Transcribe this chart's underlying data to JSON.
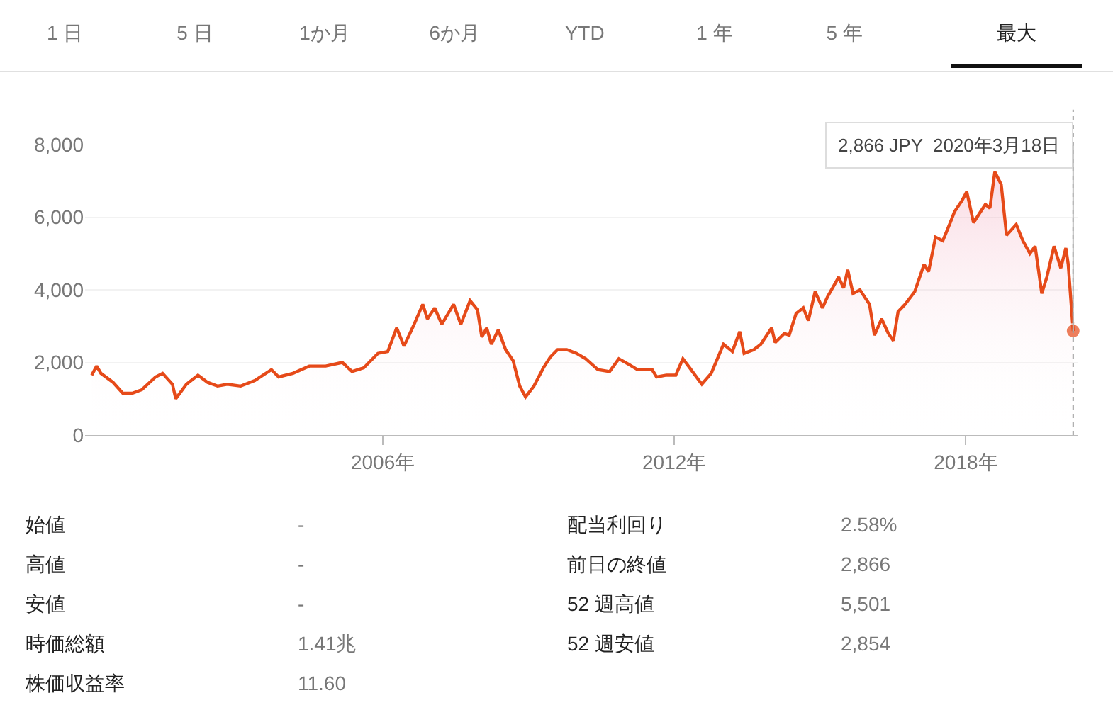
{
  "chart_data": {
    "type": "area",
    "x": [
      "2000-01-04",
      "2000-02-10",
      "2000-03-13",
      "2000-06-13",
      "2000-08-25",
      "2000-11-03",
      "2001-01-15",
      "2001-04-28",
      "2001-06-20",
      "2001-09-02",
      "2001-09-27",
      "2001-12-16",
      "2002-03-13",
      "2002-05-25",
      "2002-08-07",
      "2002-10-19",
      "2003-01-28",
      "2003-05-14",
      "2003-09-16",
      "2003-11-10",
      "2004-02-25",
      "2004-06-27",
      "2004-10-28",
      "2005-03-02",
      "2005-05-14",
      "2005-08-10",
      "2005-11-25",
      "2006-02-07",
      "2006-04-15",
      "2006-06-09",
      "2006-08-18",
      "2006-10-28",
      "2006-12-02",
      "2007-01-26",
      "2007-03-20",
      "2007-06-17",
      "2007-08-10",
      "2007-10-19",
      "2007-12-13",
      "2008-01-15",
      "2008-02-21",
      "2008-03-27",
      "2008-05-18",
      "2008-07-12",
      "2008-09-06",
      "2008-10-26",
      "2008-12-09",
      "2009-02-10",
      "2009-04-22",
      "2009-06-13",
      "2009-08-07",
      "2009-10-15",
      "2009-12-27",
      "2010-03-06",
      "2010-06-06",
      "2010-09-02",
      "2010-11-10",
      "2011-01-23",
      "2011-04-01",
      "2011-07-19",
      "2011-08-21",
      "2011-11-03",
      "2012-01-12",
      "2012-03-06",
      "2012-04-26",
      "2012-07-26",
      "2012-10-05",
      "2013-01-05",
      "2013-03-13",
      "2013-05-07",
      "2013-06-09",
      "2013-08-21",
      "2013-10-12",
      "2014-01-02",
      "2014-01-28",
      "2014-04-08",
      "2014-05-14",
      "2014-07-05",
      "2014-08-28",
      "2014-10-05",
      "2014-11-25",
      "2015-01-19",
      "2015-02-25",
      "2015-05-21",
      "2015-06-27",
      "2015-07-28",
      "2015-09-06",
      "2015-10-28",
      "2016-01-08",
      "2016-02-14",
      "2016-04-08",
      "2016-05-28",
      "2016-07-05",
      "2016-08-10",
      "2016-10-01",
      "2016-12-13",
      "2017-02-21",
      "2017-03-27",
      "2017-05-18",
      "2017-07-12",
      "2017-09-06",
      "2017-10-08",
      "2017-12-02",
      "2018-01-08",
      "2018-02-28",
      "2018-04-22",
      "2018-05-28",
      "2018-07-01",
      "2018-08-07",
      "2018-09-24",
      "2018-11-03",
      "2019-01-15",
      "2019-03-06",
      "2019-04-28",
      "2019-06-06",
      "2019-07-26",
      "2019-09-02",
      "2019-10-26",
      "2019-12-16",
      "2020-01-23",
      "2020-02-10",
      "2020-03-18"
    ],
    "series": [
      {
        "color": "#e64a19",
        "values": [
          1650,
          1900,
          1700,
          1450,
          1150,
          1150,
          1250,
          1600,
          1700,
          1400,
          1000,
          1400,
          1650,
          1450,
          1350,
          1400,
          1350,
          1500,
          1800,
          1600,
          1700,
          1900,
          1900,
          2000,
          1750,
          1850,
          2250,
          2300,
          2950,
          2450,
          3000,
          3600,
          3200,
          3500,
          3050,
          3600,
          3050,
          3700,
          3450,
          2700,
          2950,
          2500,
          2900,
          2350,
          2050,
          1350,
          1050,
          1350,
          1850,
          2150,
          2350,
          2350,
          2250,
          2100,
          1800,
          1750,
          2100,
          1950,
          1800,
          1800,
          1600,
          1650,
          1650,
          2100,
          1850,
          1400,
          1700,
          2500,
          2300,
          2850,
          2250,
          2350,
          2500,
          2950,
          2550,
          2800,
          2750,
          3350,
          3500,
          3150,
          3950,
          3500,
          3800,
          4350,
          4050,
          4550,
          3900,
          4000,
          3600,
          2750,
          3200,
          2800,
          2600,
          3400,
          3600,
          3950,
          4700,
          4500,
          5450,
          5350,
          5850,
          6150,
          6450,
          6700,
          5850,
          6150,
          6350,
          6250,
          7250,
          6900,
          5500,
          5800,
          5350,
          5000,
          5200,
          3900,
          4350,
          5200,
          4600,
          5150,
          4700,
          2866
        ]
      }
    ],
    "xlim": [
      "1999-11-15",
      "2020-04-20"
    ],
    "xticks": [
      {
        "value": "2006-01-01",
        "label": "2006年"
      },
      {
        "value": "2012-01-01",
        "label": "2012年"
      },
      {
        "value": "2018-01-01",
        "label": "2018年"
      }
    ],
    "ylim": [
      0,
      8000
    ],
    "yticks": [
      {
        "value": 0,
        "label": "0"
      },
      {
        "value": 2000,
        "label": "2,000"
      },
      {
        "value": 4000,
        "label": "4,000"
      },
      {
        "value": 6000,
        "label": "6,000"
      },
      {
        "value": 8000,
        "label": "8,000"
      }
    ],
    "grid": "y",
    "ref_lines": [
      {
        "axis": "x",
        "value": "2020-03-18",
        "color": "#9e9e9e",
        "line_style": "dotted"
      }
    ],
    "annotations": [
      "1 日",
      "5 日",
      "1か月",
      "6か月",
      "YTD",
      "1 年",
      "5 年",
      "最大",
      {
        "text": "2,866 JPY  2020年3月18日",
        "x": "2020-03-18",
        "y": 2866
      },
      "始値",
      "-",
      "高値",
      "-",
      "安値",
      "-",
      "時価総額",
      "1.41兆",
      "株価収益率",
      "11.60",
      "配当利回り",
      "2.58%",
      "前日の終値",
      "2,866",
      "52 週高値",
      "5,501",
      "52 週安値",
      "2,854"
    ]
  }
}
